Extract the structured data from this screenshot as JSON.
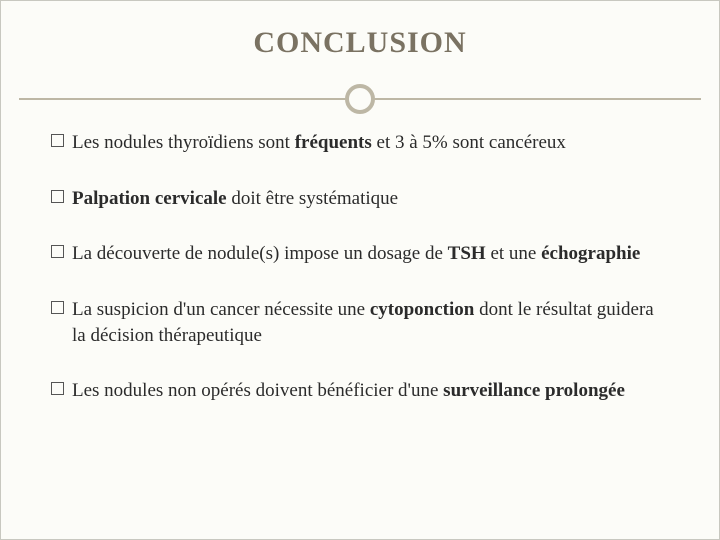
{
  "slide": {
    "title": "CONCLUSION",
    "title_color": "#7a7262",
    "title_fontsize": 30,
    "background_color": "#fcfcf8",
    "divider_color": "#bdb7a5",
    "body_fontsize": 19,
    "body_color": "#2b2b2b",
    "bullets": [
      {
        "html": "Les nodules thyroïdiens sont <b>fréquents</b> et 3 à 5% sont cancéreux"
      },
      {
        "html": "<b>Palpation cervicale</b> doit être systématique"
      },
      {
        "html": "La découverte de nodule(s) impose un dosage de <b>TSH</b> et une <b>échographie</b>"
      },
      {
        "html": "La suspicion d'un cancer nécessite une <b>cytoponction</b> dont le résultat guidera la décision thérapeutique"
      },
      {
        "html": "Les nodules non opérés doivent bénéficier d'une <b>surveillance prolongée</b>"
      }
    ]
  }
}
